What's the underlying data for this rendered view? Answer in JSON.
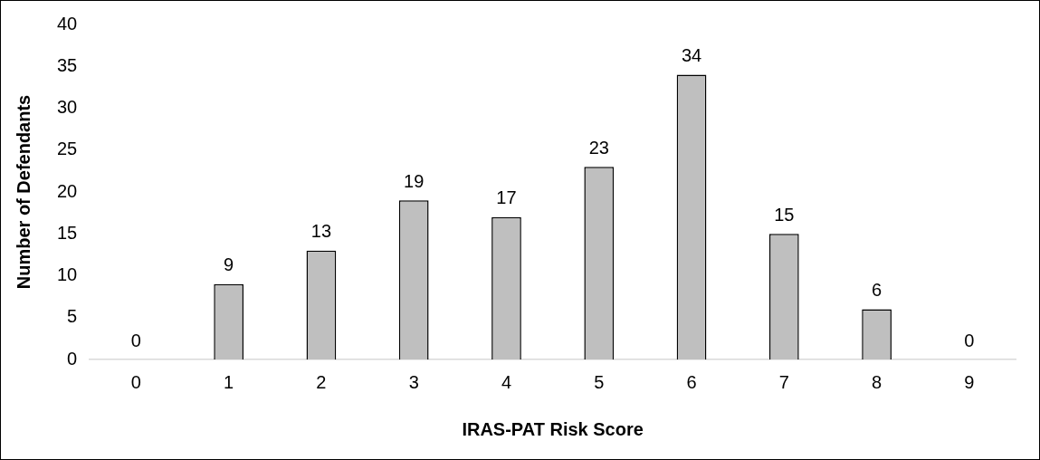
{
  "chart_data": {
    "type": "bar",
    "xlabel": "IRAS-PAT Risk Score",
    "ylabel": "Number of Defendants",
    "categories": [
      "0",
      "1",
      "2",
      "3",
      "4",
      "5",
      "6",
      "7",
      "8",
      "9"
    ],
    "values": [
      0,
      9,
      13,
      19,
      17,
      23,
      34,
      15,
      6,
      0
    ],
    "color": "#bfbfbf",
    "ylim": [
      0,
      40
    ],
    "yticks": [
      0,
      5,
      10,
      15,
      20,
      25,
      30,
      35,
      40
    ],
    "data_labels": true
  }
}
